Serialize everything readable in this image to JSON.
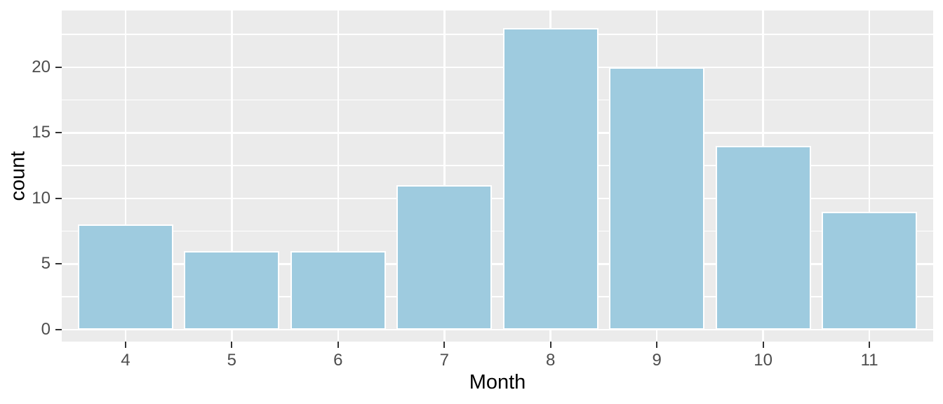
{
  "chart_data": {
    "type": "bar",
    "title": "",
    "xlabel": "Month",
    "ylabel": "count",
    "categories": [
      "4",
      "5",
      "6",
      "7",
      "8",
      "9",
      "10",
      "11"
    ],
    "values": [
      8,
      6,
      6,
      11,
      23,
      20,
      14,
      9
    ],
    "yticks": [
      0,
      5,
      10,
      15,
      20
    ],
    "yminor": [
      2.5,
      7.5,
      12.5,
      17.5,
      22.5
    ],
    "ylim": [
      -0.91,
      24.33
    ],
    "legend_position": "none",
    "grid": "on",
    "colors": {
      "bar_fill": "#9ECBDF",
      "bar_border": "#FFFFFF",
      "panel_background": "#EBEBEB",
      "gridline": "#FFFFFF",
      "tick_mark": "#333333",
      "tick_label": "#4D4D4D",
      "axis_title": "#000000",
      "plot_background": "#FFFFFF"
    }
  }
}
